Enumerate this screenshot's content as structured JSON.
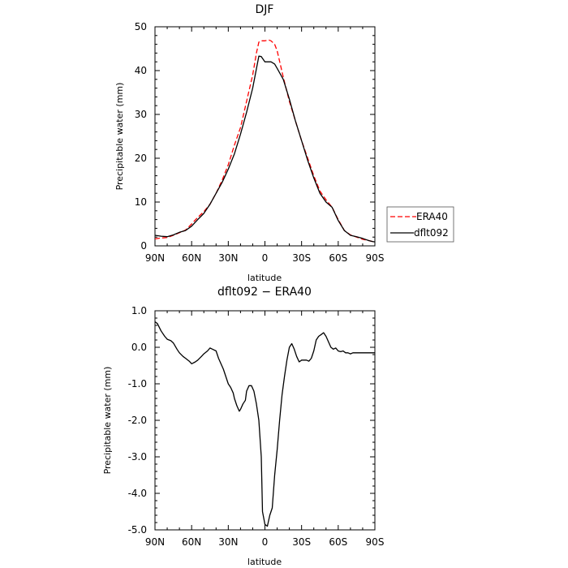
{
  "chart_data": [
    {
      "type": "line",
      "title": "DJF",
      "xlabel": "latitude",
      "ylabel": "Precipitable water (mm)",
      "xlim": [
        90,
        -90
      ],
      "ylim": [
        0,
        50
      ],
      "x_ticks": [
        90,
        60,
        30,
        0,
        -30,
        -60,
        -90
      ],
      "x_tick_labels": [
        "90N",
        "60N",
        "30N",
        "0",
        "30S",
        "60S",
        "90S"
      ],
      "y_ticks": [
        0,
        10,
        20,
        30,
        40,
        50
      ],
      "y_tick_labels": [
        "0",
        "10",
        "20",
        "30",
        "40",
        "50"
      ],
      "legend_position": "right",
      "series": [
        {
          "name": "ERA40",
          "color": "#ff0000",
          "dash": "dashed",
          "x": [
            90,
            85,
            80,
            75,
            70,
            65,
            60,
            55,
            50,
            45,
            40,
            35,
            30,
            25,
            20,
            15,
            10,
            7,
            5,
            3,
            0,
            -3,
            -5,
            -8,
            -10,
            -15,
            -20,
            -25,
            -30,
            -35,
            -40,
            -45,
            -50,
            -55,
            -60,
            -65,
            -70,
            -75,
            -80,
            -85,
            -88,
            -90
          ],
          "y": [
            1.6,
            1.8,
            1.9,
            2.4,
            3.0,
            3.6,
            5.0,
            6.5,
            7.8,
            9.5,
            12.0,
            15.0,
            18.5,
            23.0,
            27.0,
            33.0,
            39.0,
            44.0,
            46.5,
            46.8,
            46.8,
            47.0,
            46.8,
            46.0,
            44.5,
            38.5,
            33.0,
            28.5,
            24.0,
            20.0,
            16.0,
            12.5,
            10.5,
            8.8,
            6.0,
            3.5,
            2.5,
            2.0,
            1.5,
            1.2,
            1.0,
            0.8
          ]
        },
        {
          "name": "dflt092",
          "color": "#000000",
          "dash": "solid",
          "x": [
            90,
            85,
            80,
            75,
            70,
            65,
            60,
            55,
            50,
            45,
            40,
            35,
            30,
            25,
            20,
            15,
            10,
            5,
            3,
            0,
            -3,
            -5,
            -8,
            -10,
            -15,
            -20,
            -25,
            -30,
            -35,
            -40,
            -45,
            -50,
            -55,
            -60,
            -65,
            -70,
            -75,
            -80,
            -85,
            -88,
            -90
          ],
          "y": [
            2.4,
            2.2,
            2.1,
            2.5,
            3.1,
            3.5,
            4.5,
            6.0,
            7.4,
            9.5,
            12.0,
            14.5,
            17.5,
            21.0,
            25.5,
            30.5,
            36.0,
            43.3,
            43.2,
            42.0,
            42.0,
            42.0,
            41.5,
            40.5,
            38.0,
            33.5,
            28.5,
            24.0,
            19.5,
            15.5,
            12.0,
            10.0,
            8.8,
            5.8,
            3.5,
            2.4,
            2.1,
            1.7,
            1.2,
            1.0,
            0.9
          ]
        }
      ]
    },
    {
      "type": "line",
      "title": "dflt092 − ERA40",
      "xlabel": "latitude",
      "ylabel": "Precipitable water (mm)",
      "xlim": [
        90,
        -90
      ],
      "ylim": [
        -5,
        1
      ],
      "x_ticks": [
        90,
        60,
        30,
        0,
        -30,
        -60,
        -90
      ],
      "x_tick_labels": [
        "90N",
        "60N",
        "30N",
        "0",
        "30S",
        "60S",
        "90S"
      ],
      "y_ticks": [
        1,
        0,
        -1,
        -2,
        -3,
        -4,
        -5
      ],
      "y_tick_labels": [
        "1.0",
        "0.0",
        "-1.0",
        "-2.0",
        "-3.0",
        "-4.0",
        "-5.0"
      ],
      "series": [
        {
          "color": "#000000",
          "dash": "solid",
          "x": [
            90,
            88,
            85,
            82,
            80,
            77,
            75,
            72,
            70,
            67,
            65,
            62,
            60,
            57,
            55,
            52,
            50,
            47,
            45,
            43,
            40,
            38,
            36,
            34,
            32,
            30,
            28,
            26,
            25,
            23,
            21,
            20,
            18,
            16,
            15,
            13,
            11,
            9,
            7,
            5,
            3,
            2,
            0,
            -2,
            -4,
            -6,
            -8,
            -10,
            -12,
            -14,
            -16,
            -18,
            -20,
            -22,
            -24,
            -26,
            -28,
            -30,
            -32,
            -34,
            -36,
            -38,
            -40,
            -42,
            -44,
            -46,
            -48,
            -50,
            -52,
            -54,
            -56,
            -58,
            -60,
            -62,
            -64,
            -66,
            -68,
            -70,
            -72,
            -74,
            -76,
            -78,
            -80,
            -82,
            -84,
            -86,
            -88,
            -90
          ],
          "y": [
            0.7,
            0.65,
            0.45,
            0.3,
            0.22,
            0.18,
            0.12,
            -0.05,
            -0.15,
            -0.25,
            -0.3,
            -0.38,
            -0.45,
            -0.4,
            -0.35,
            -0.25,
            -0.18,
            -0.1,
            -0.02,
            -0.05,
            -0.1,
            -0.3,
            -0.45,
            -0.6,
            -0.8,
            -1.0,
            -1.1,
            -1.25,
            -1.4,
            -1.6,
            -1.75,
            -1.7,
            -1.55,
            -1.45,
            -1.2,
            -1.05,
            -1.05,
            -1.2,
            -1.55,
            -2.0,
            -3.0,
            -4.5,
            -4.85,
            -4.9,
            -4.6,
            -4.4,
            -3.5,
            -2.8,
            -2.0,
            -1.3,
            -0.8,
            -0.35,
            0.0,
            0.1,
            -0.05,
            -0.25,
            -0.4,
            -0.35,
            -0.35,
            -0.35,
            -0.38,
            -0.3,
            -0.1,
            0.2,
            0.3,
            0.35,
            0.4,
            0.3,
            0.15,
            0.0,
            -0.05,
            -0.02,
            -0.1,
            -0.12,
            -0.1,
            -0.15,
            -0.15,
            -0.18,
            -0.15,
            -0.15,
            -0.15,
            -0.15,
            -0.15,
            -0.15,
            -0.15,
            -0.15,
            -0.15,
            -0.15
          ]
        }
      ]
    }
  ]
}
